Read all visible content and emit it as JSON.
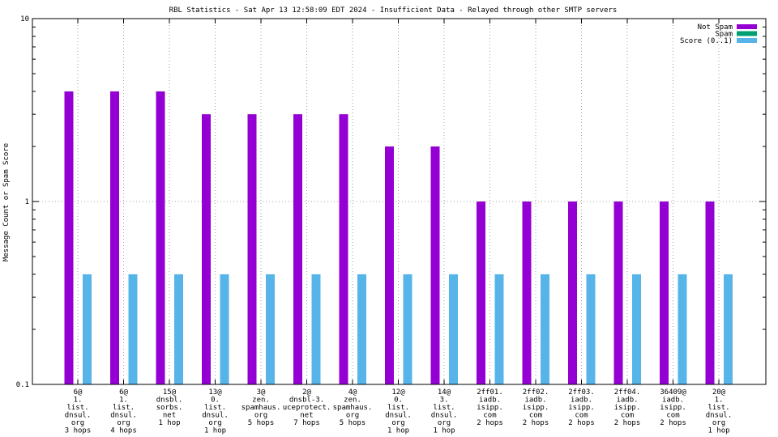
{
  "chart_data": {
    "type": "bar",
    "title": "RBL Statistics - Sat Apr 13 12:58:09 EDT 2024 - Insufficient Data - Relayed through other SMTP servers",
    "ylabel": "Message Count or Spam Score",
    "xlabel": "",
    "y_scale": "log",
    "ylim": [
      0.1,
      10
    ],
    "y_ticks": [
      "0.1",
      "1",
      "10"
    ],
    "grid": true,
    "legend_position": "top-right",
    "categories": [
      [
        "6@",
        "1.",
        "list.",
        "dnsul.",
        "org",
        "3 hops"
      ],
      [
        "6@",
        "1.",
        "list.",
        "dnsul.",
        "org",
        "4 hops"
      ],
      [
        "15@",
        "dnsbl.",
        "sorbs.",
        "net",
        "1 hop"
      ],
      [
        "13@",
        "0.",
        "list.",
        "dnsul.",
        "org",
        "1 hop"
      ],
      [
        "3@",
        "zen.",
        "spamhaus.",
        "org",
        "5 hops"
      ],
      [
        "2@",
        "dnsbl-3.",
        "uceprotect.",
        "net",
        "7 hops"
      ],
      [
        "4@",
        "zen.",
        "spamhaus.",
        "org",
        "5 hops"
      ],
      [
        "12@",
        "0.",
        "list.",
        "dnsul.",
        "org",
        "1 hop"
      ],
      [
        "14@",
        "3.",
        "list.",
        "dnsul.",
        "org",
        "1 hop"
      ],
      [
        "2ff01.",
        "iadb.",
        "isipp.",
        "com",
        "2 hops"
      ],
      [
        "2ff02.",
        "iadb.",
        "isipp.",
        "com",
        "2 hops"
      ],
      [
        "2ff03.",
        "iadb.",
        "isipp.",
        "com",
        "2 hops"
      ],
      [
        "2ff04.",
        "iadb.",
        "isipp.",
        "com",
        "2 hops"
      ],
      [
        "36409@",
        "iadb.",
        "isipp.",
        "com",
        "2 hops"
      ],
      [
        "20@",
        "1.",
        "list.",
        "dnsul.",
        "org",
        "1 hop"
      ]
    ],
    "series": [
      {
        "name": "Not Spam",
        "color": "#9400d3",
        "values": [
          4,
          4,
          4,
          3,
          3,
          3,
          3,
          2,
          2,
          1,
          1,
          1,
          1,
          1,
          1
        ]
      },
      {
        "name": "Spam",
        "color": "#009e73",
        "values": [
          0,
          0,
          0,
          0,
          0,
          0,
          0,
          0,
          0,
          0,
          0,
          0,
          0,
          0,
          0
        ]
      },
      {
        "name": "Score (0..1)",
        "color": "#56b4e9",
        "values": [
          0.4,
          0.4,
          0.4,
          0.4,
          0.4,
          0.4,
          0.4,
          0.4,
          0.4,
          0.4,
          0.4,
          0.4,
          0.4,
          0.4,
          0.4
        ]
      }
    ]
  }
}
